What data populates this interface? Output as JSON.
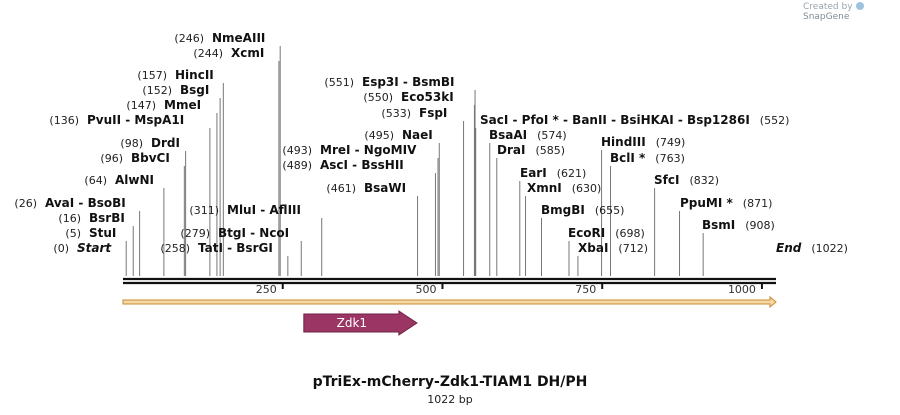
{
  "credit": {
    "prefix": "Created by",
    "brand": "SnapGene"
  },
  "title": "pTriEx-mCherry-Zdk1-TIAM1 DH/PH",
  "length_label": "1022 bp",
  "sequence_length": 1022,
  "ruler_ticks": [
    {
      "value": 250,
      "label": "250"
    },
    {
      "value": 500,
      "label": "500"
    },
    {
      "value": 750,
      "label": "750"
    },
    {
      "value": 1000,
      "label": "1000"
    }
  ],
  "feature": {
    "name": "Zdk1",
    "start": 283,
    "end": 460,
    "color": "#9b3564"
  },
  "colors": {
    "line": "#111111",
    "strand_fill": "#f6d8a6",
    "strand_edge": "#c88b2e",
    "lead": "#777777"
  },
  "sites": [
    {
      "name": "Start",
      "pos": 0,
      "label_pos": "(0)",
      "side": "left",
      "italic": true
    },
    {
      "name": "StuI",
      "pos": 5,
      "label_pos": "(5)",
      "side": "left"
    },
    {
      "name": "BsrBI",
      "pos": 16,
      "label_pos": "(16)",
      "side": "left"
    },
    {
      "name": "AvaI  - BsoBI",
      "pos": 26,
      "label_pos": "(26)",
      "side": "left"
    },
    {
      "name": "AlwNI",
      "pos": 64,
      "label_pos": "(64)",
      "side": "left"
    },
    {
      "name": "BbvCI",
      "pos": 96,
      "label_pos": "(96)",
      "side": "left"
    },
    {
      "name": "DrdI",
      "pos": 98,
      "label_pos": "(98)",
      "side": "left"
    },
    {
      "name": "PvuII  - MspA1I",
      "pos": 136,
      "label_pos": "(136)",
      "side": "left"
    },
    {
      "name": "MmeI",
      "pos": 147,
      "label_pos": "(147)",
      "side": "left"
    },
    {
      "name": "BsgI",
      "pos": 152,
      "label_pos": "(152)",
      "side": "left"
    },
    {
      "name": "HincII",
      "pos": 157,
      "label_pos": "(157)",
      "side": "left"
    },
    {
      "name": "XcmI",
      "pos": 244,
      "label_pos": "(244)",
      "side": "left"
    },
    {
      "name": "NmeAIII",
      "pos": 246,
      "label_pos": "(246)",
      "side": "left"
    },
    {
      "name": "TatI  - BsrGI",
      "pos": 258,
      "label_pos": "(258)",
      "side": "right"
    },
    {
      "name": "BtgI  - NcoI",
      "pos": 279,
      "label_pos": "(279)",
      "side": "right"
    },
    {
      "name": "MluI  - AflIII",
      "pos": 311,
      "label_pos": "(311)",
      "side": "right"
    },
    {
      "name": "BsaWI",
      "pos": 461,
      "label_pos": "(461)",
      "side": "left"
    },
    {
      "name": "AscI  - BssHII",
      "pos": 489,
      "label_pos": "(489)",
      "side": "left"
    },
    {
      "name": "MreI  - NgoMIV",
      "pos": 493,
      "label_pos": "(493)",
      "side": "left"
    },
    {
      "name": "NaeI",
      "pos": 495,
      "label_pos": "(495)",
      "side": "left"
    },
    {
      "name": "FspI",
      "pos": 533,
      "label_pos": "(533)",
      "side": "left"
    },
    {
      "name": "Eco53kI",
      "pos": 550,
      "label_pos": "(550)",
      "side": "left"
    },
    {
      "name": "Esp3I  - BsmBI",
      "pos": 551,
      "label_pos": "(551)",
      "side": "left"
    },
    {
      "name": "SacI  - PfoI *  - BanII  - BsiHKAI  - Bsp1286I",
      "pos": 552,
      "label_pos": "(552)",
      "side": "right"
    },
    {
      "name": "BsaAI",
      "pos": 574,
      "label_pos": "(574)",
      "side": "right"
    },
    {
      "name": "DraI",
      "pos": 585,
      "label_pos": "(585)",
      "side": "right"
    },
    {
      "name": "EarI",
      "pos": 621,
      "label_pos": "(621)",
      "side": "right"
    },
    {
      "name": "XmnI",
      "pos": 630,
      "label_pos": "(630)",
      "side": "right"
    },
    {
      "name": "BmgBI",
      "pos": 655,
      "label_pos": "(655)",
      "side": "right"
    },
    {
      "name": "EcoRI",
      "pos": 698,
      "label_pos": "(698)",
      "side": "right"
    },
    {
      "name": "XbaI",
      "pos": 712,
      "label_pos": "(712)",
      "side": "right"
    },
    {
      "name": "HindIII",
      "pos": 749,
      "label_pos": "(749)",
      "side": "right"
    },
    {
      "name": "BclI *",
      "pos": 763,
      "label_pos": "(763)",
      "side": "right"
    },
    {
      "name": "SfcI",
      "pos": 832,
      "label_pos": "(832)",
      "side": "right"
    },
    {
      "name": "PpuMI *",
      "pos": 871,
      "label_pos": "(871)",
      "side": "right"
    },
    {
      "name": "BsmI",
      "pos": 908,
      "label_pos": "(908)",
      "side": "right"
    },
    {
      "name": "End",
      "pos": 1022,
      "label_pos": "(1022)",
      "side": "right",
      "italic": true
    }
  ]
}
